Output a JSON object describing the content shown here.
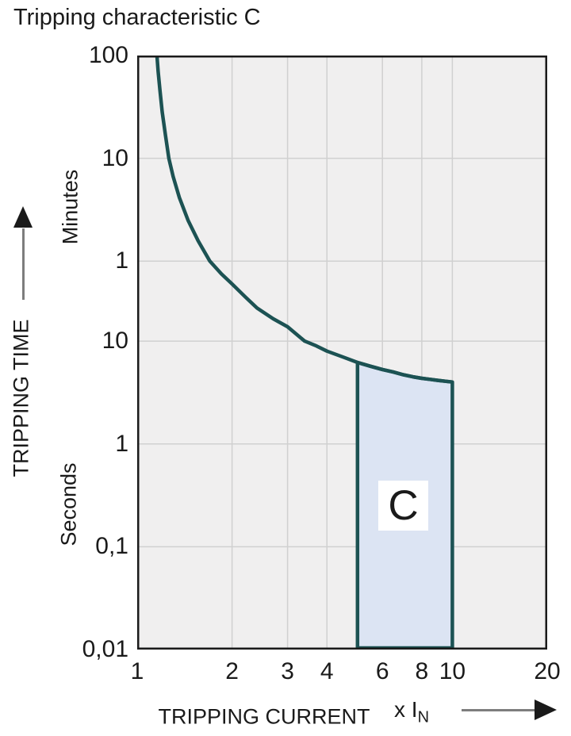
{
  "title": "Tripping characteristic C",
  "y_axis": {
    "title": "TRIPPING TIME",
    "unit_upper": "Minutes",
    "unit_lower": "Seconds"
  },
  "x_axis": {
    "title": "TRIPPING CURRENT",
    "unit": "x I",
    "unit_sub": "N"
  },
  "region_label": "C",
  "colors": {
    "curve": "#1c5253",
    "region_fill": "#dce4f3",
    "plot_bg": "#f0efef",
    "grid": "#d0d0d0",
    "axis_border": "#1a1a1a",
    "arrow_shaft": "#7d7d7d",
    "text": "#1a1a1a"
  },
  "chart_data": {
    "type": "line",
    "title": "Tripping characteristic C",
    "xlabel": "TRIPPING CURRENT (x IN)",
    "ylabel": "TRIPPING TIME",
    "x_scale": "log",
    "y_scale": "log",
    "xlim": [
      1,
      20
    ],
    "ylim_seconds": [
      0.01,
      6000
    ],
    "grid": true,
    "x_ticks": [
      1,
      2,
      3,
      4,
      6,
      8,
      10,
      20
    ],
    "y_ticks": [
      {
        "label": "100",
        "seconds": 6000,
        "unit": "minutes"
      },
      {
        "label": "10",
        "seconds": 600,
        "unit": "minutes"
      },
      {
        "label": "1",
        "seconds": 60,
        "unit": "minutes"
      },
      {
        "label": "10",
        "seconds": 10,
        "unit": "seconds"
      },
      {
        "label": "1",
        "seconds": 1,
        "unit": "seconds"
      },
      {
        "label": "0,1",
        "seconds": 0.1,
        "unit": "seconds"
      },
      {
        "label": "0,01",
        "seconds": 0.01,
        "unit": "seconds"
      }
    ],
    "x_gridlines": [
      2,
      3,
      4,
      6,
      8,
      10
    ],
    "y_gridlines_seconds": [
      600,
      60,
      10,
      1,
      0.1
    ],
    "series": [
      {
        "name": "C tripping curve",
        "points": [
          [
            1.155,
            6000
          ],
          [
            1.165,
            4200
          ],
          [
            1.18,
            2800
          ],
          [
            1.2,
            1700
          ],
          [
            1.23,
            1000
          ],
          [
            1.26,
            600
          ],
          [
            1.3,
            400
          ],
          [
            1.36,
            250
          ],
          [
            1.45,
            150
          ],
          [
            1.56,
            95
          ],
          [
            1.7,
            60
          ],
          [
            1.85,
            45
          ],
          [
            2.0,
            36
          ],
          [
            2.2,
            27
          ],
          [
            2.4,
            21
          ],
          [
            2.7,
            16.5
          ],
          [
            3.0,
            13.8
          ],
          [
            3.4,
            10
          ],
          [
            3.7,
            9.0
          ],
          [
            4.0,
            8.0
          ],
          [
            4.5,
            7.0
          ],
          [
            5.0,
            6.2
          ],
          [
            5.5,
            5.7
          ],
          [
            6.0,
            5.3
          ],
          [
            6.5,
            5.0
          ],
          [
            7.0,
            4.7
          ],
          [
            7.5,
            4.5
          ],
          [
            8.0,
            4.35
          ],
          [
            8.5,
            4.25
          ],
          [
            9.0,
            4.15
          ],
          [
            9.5,
            4.07
          ],
          [
            10.0,
            4.0
          ]
        ]
      }
    ],
    "region": {
      "label": "C",
      "x_range": [
        5,
        10
      ],
      "t_bottom_seconds": 0.01,
      "top_follows_curve": true,
      "t_top_left_seconds": 6.2,
      "t_top_right_seconds": 4.0
    }
  }
}
